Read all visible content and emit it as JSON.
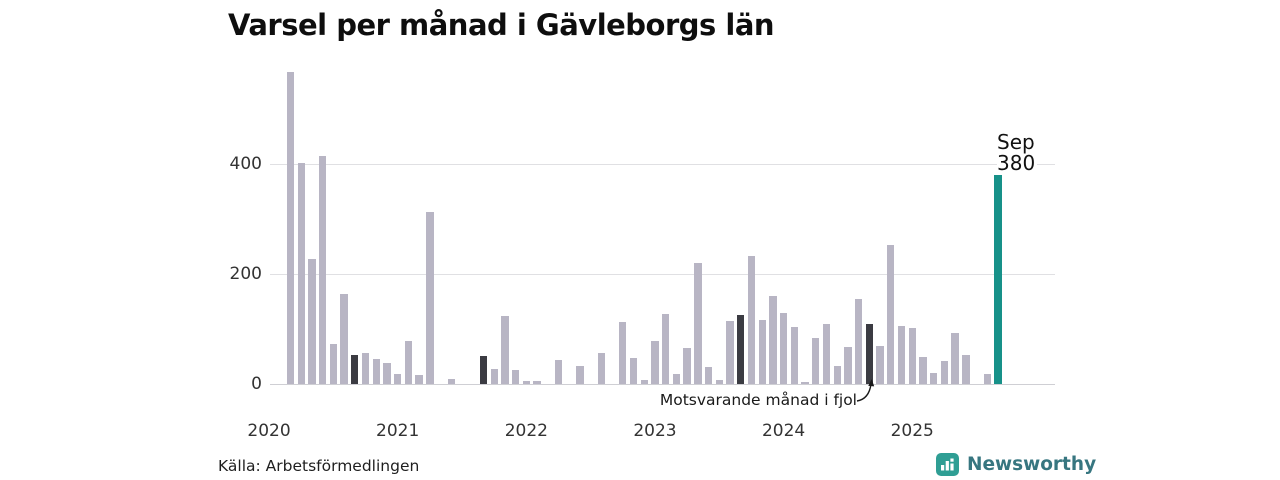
{
  "title": "Varsel per månad i Gävleborgs län",
  "source": "Källa: Arbetsförmedlingen",
  "brand": {
    "name": "Newsworthy"
  },
  "annotation": {
    "label": "Motsvarande månad i fjol"
  },
  "current_label": {
    "month": "Sep",
    "value": "380"
  },
  "colors": {
    "bar_default": "#b8b5c4",
    "bar_highlight": "#3b3b42",
    "bar_current": "#179189",
    "grid": "#e0e0e3",
    "badge": "#2f9e94",
    "brand_text": "#377680"
  },
  "chart_data": {
    "type": "bar",
    "title": "Varsel per månad i Gävleborgs län",
    "ylabel": "",
    "xlabel": "",
    "y_ticks": [
      0,
      200,
      400
    ],
    "ylim": [
      0,
      580
    ],
    "grid": true,
    "x_year_ticks": [
      "2020",
      "2021",
      "2022",
      "2023",
      "2024",
      "2025"
    ],
    "legend_note": "dark bars = same month previous year (Motsvarande månad i fjol); teal bar = current month Sep 2025 = 380",
    "points": [
      {
        "month": "2020-03",
        "value": 567,
        "kind": "default"
      },
      {
        "month": "2020-04",
        "value": 402,
        "kind": "default"
      },
      {
        "month": "2020-05",
        "value": 227,
        "kind": "default"
      },
      {
        "month": "2020-06",
        "value": 414,
        "kind": "default"
      },
      {
        "month": "2020-07",
        "value": 73,
        "kind": "default"
      },
      {
        "month": "2020-08",
        "value": 163,
        "kind": "default"
      },
      {
        "month": "2020-09",
        "value": 52,
        "kind": "highlight"
      },
      {
        "month": "2020-10",
        "value": 57,
        "kind": "default"
      },
      {
        "month": "2020-11",
        "value": 45,
        "kind": "default"
      },
      {
        "month": "2020-12",
        "value": 38,
        "kind": "default"
      },
      {
        "month": "2021-01",
        "value": 19,
        "kind": "default"
      },
      {
        "month": "2021-02",
        "value": 78,
        "kind": "default"
      },
      {
        "month": "2021-03",
        "value": 17,
        "kind": "default"
      },
      {
        "month": "2021-04",
        "value": 313,
        "kind": "default"
      },
      {
        "month": "2021-05",
        "value": 0,
        "kind": "default"
      },
      {
        "month": "2021-06",
        "value": 9,
        "kind": "default"
      },
      {
        "month": "2021-07",
        "value": 0,
        "kind": "default"
      },
      {
        "month": "2021-08",
        "value": 0,
        "kind": "default"
      },
      {
        "month": "2021-09",
        "value": 51,
        "kind": "highlight"
      },
      {
        "month": "2021-10",
        "value": 28,
        "kind": "default"
      },
      {
        "month": "2021-11",
        "value": 123,
        "kind": "default"
      },
      {
        "month": "2021-12",
        "value": 25,
        "kind": "default"
      },
      {
        "month": "2022-01",
        "value": 5,
        "kind": "default"
      },
      {
        "month": "2022-02",
        "value": 5,
        "kind": "default"
      },
      {
        "month": "2022-03",
        "value": 0,
        "kind": "default"
      },
      {
        "month": "2022-04",
        "value": 44,
        "kind": "default"
      },
      {
        "month": "2022-05",
        "value": 0,
        "kind": "default"
      },
      {
        "month": "2022-06",
        "value": 33,
        "kind": "default"
      },
      {
        "month": "2022-07",
        "value": 0,
        "kind": "default"
      },
      {
        "month": "2022-08",
        "value": 56,
        "kind": "default"
      },
      {
        "month": "2022-09",
        "value": 0,
        "kind": "default"
      },
      {
        "month": "2022-10",
        "value": 112,
        "kind": "default"
      },
      {
        "month": "2022-11",
        "value": 47,
        "kind": "default"
      },
      {
        "month": "2022-12",
        "value": 8,
        "kind": "default"
      },
      {
        "month": "2023-01",
        "value": 79,
        "kind": "default"
      },
      {
        "month": "2023-02",
        "value": 128,
        "kind": "default"
      },
      {
        "month": "2023-03",
        "value": 18,
        "kind": "default"
      },
      {
        "month": "2023-04",
        "value": 66,
        "kind": "default"
      },
      {
        "month": "2023-05",
        "value": 220,
        "kind": "default"
      },
      {
        "month": "2023-06",
        "value": 31,
        "kind": "default"
      },
      {
        "month": "2023-07",
        "value": 8,
        "kind": "default"
      },
      {
        "month": "2023-08",
        "value": 115,
        "kind": "default"
      },
      {
        "month": "2023-09",
        "value": 126,
        "kind": "highlight"
      },
      {
        "month": "2023-10",
        "value": 232,
        "kind": "default"
      },
      {
        "month": "2023-11",
        "value": 116,
        "kind": "default"
      },
      {
        "month": "2023-12",
        "value": 160,
        "kind": "default"
      },
      {
        "month": "2024-01",
        "value": 130,
        "kind": "default"
      },
      {
        "month": "2024-02",
        "value": 103,
        "kind": "default"
      },
      {
        "month": "2024-03",
        "value": 4,
        "kind": "default"
      },
      {
        "month": "2024-04",
        "value": 84,
        "kind": "default"
      },
      {
        "month": "2024-05",
        "value": 110,
        "kind": "default"
      },
      {
        "month": "2024-06",
        "value": 33,
        "kind": "default"
      },
      {
        "month": "2024-07",
        "value": 67,
        "kind": "default"
      },
      {
        "month": "2024-08",
        "value": 155,
        "kind": "default"
      },
      {
        "month": "2024-09",
        "value": 109,
        "kind": "highlight"
      },
      {
        "month": "2024-10",
        "value": 70,
        "kind": "default"
      },
      {
        "month": "2024-11",
        "value": 252,
        "kind": "default"
      },
      {
        "month": "2024-12",
        "value": 105,
        "kind": "default"
      },
      {
        "month": "2025-01",
        "value": 102,
        "kind": "default"
      },
      {
        "month": "2025-02",
        "value": 50,
        "kind": "default"
      },
      {
        "month": "2025-03",
        "value": 20,
        "kind": "default"
      },
      {
        "month": "2025-04",
        "value": 41,
        "kind": "default"
      },
      {
        "month": "2025-05",
        "value": 93,
        "kind": "default"
      },
      {
        "month": "2025-06",
        "value": 52,
        "kind": "default"
      },
      {
        "month": "2025-07",
        "value": 0,
        "kind": "default"
      },
      {
        "month": "2025-08",
        "value": 18,
        "kind": "default"
      },
      {
        "month": "2025-09",
        "value": 380,
        "kind": "current"
      }
    ]
  }
}
